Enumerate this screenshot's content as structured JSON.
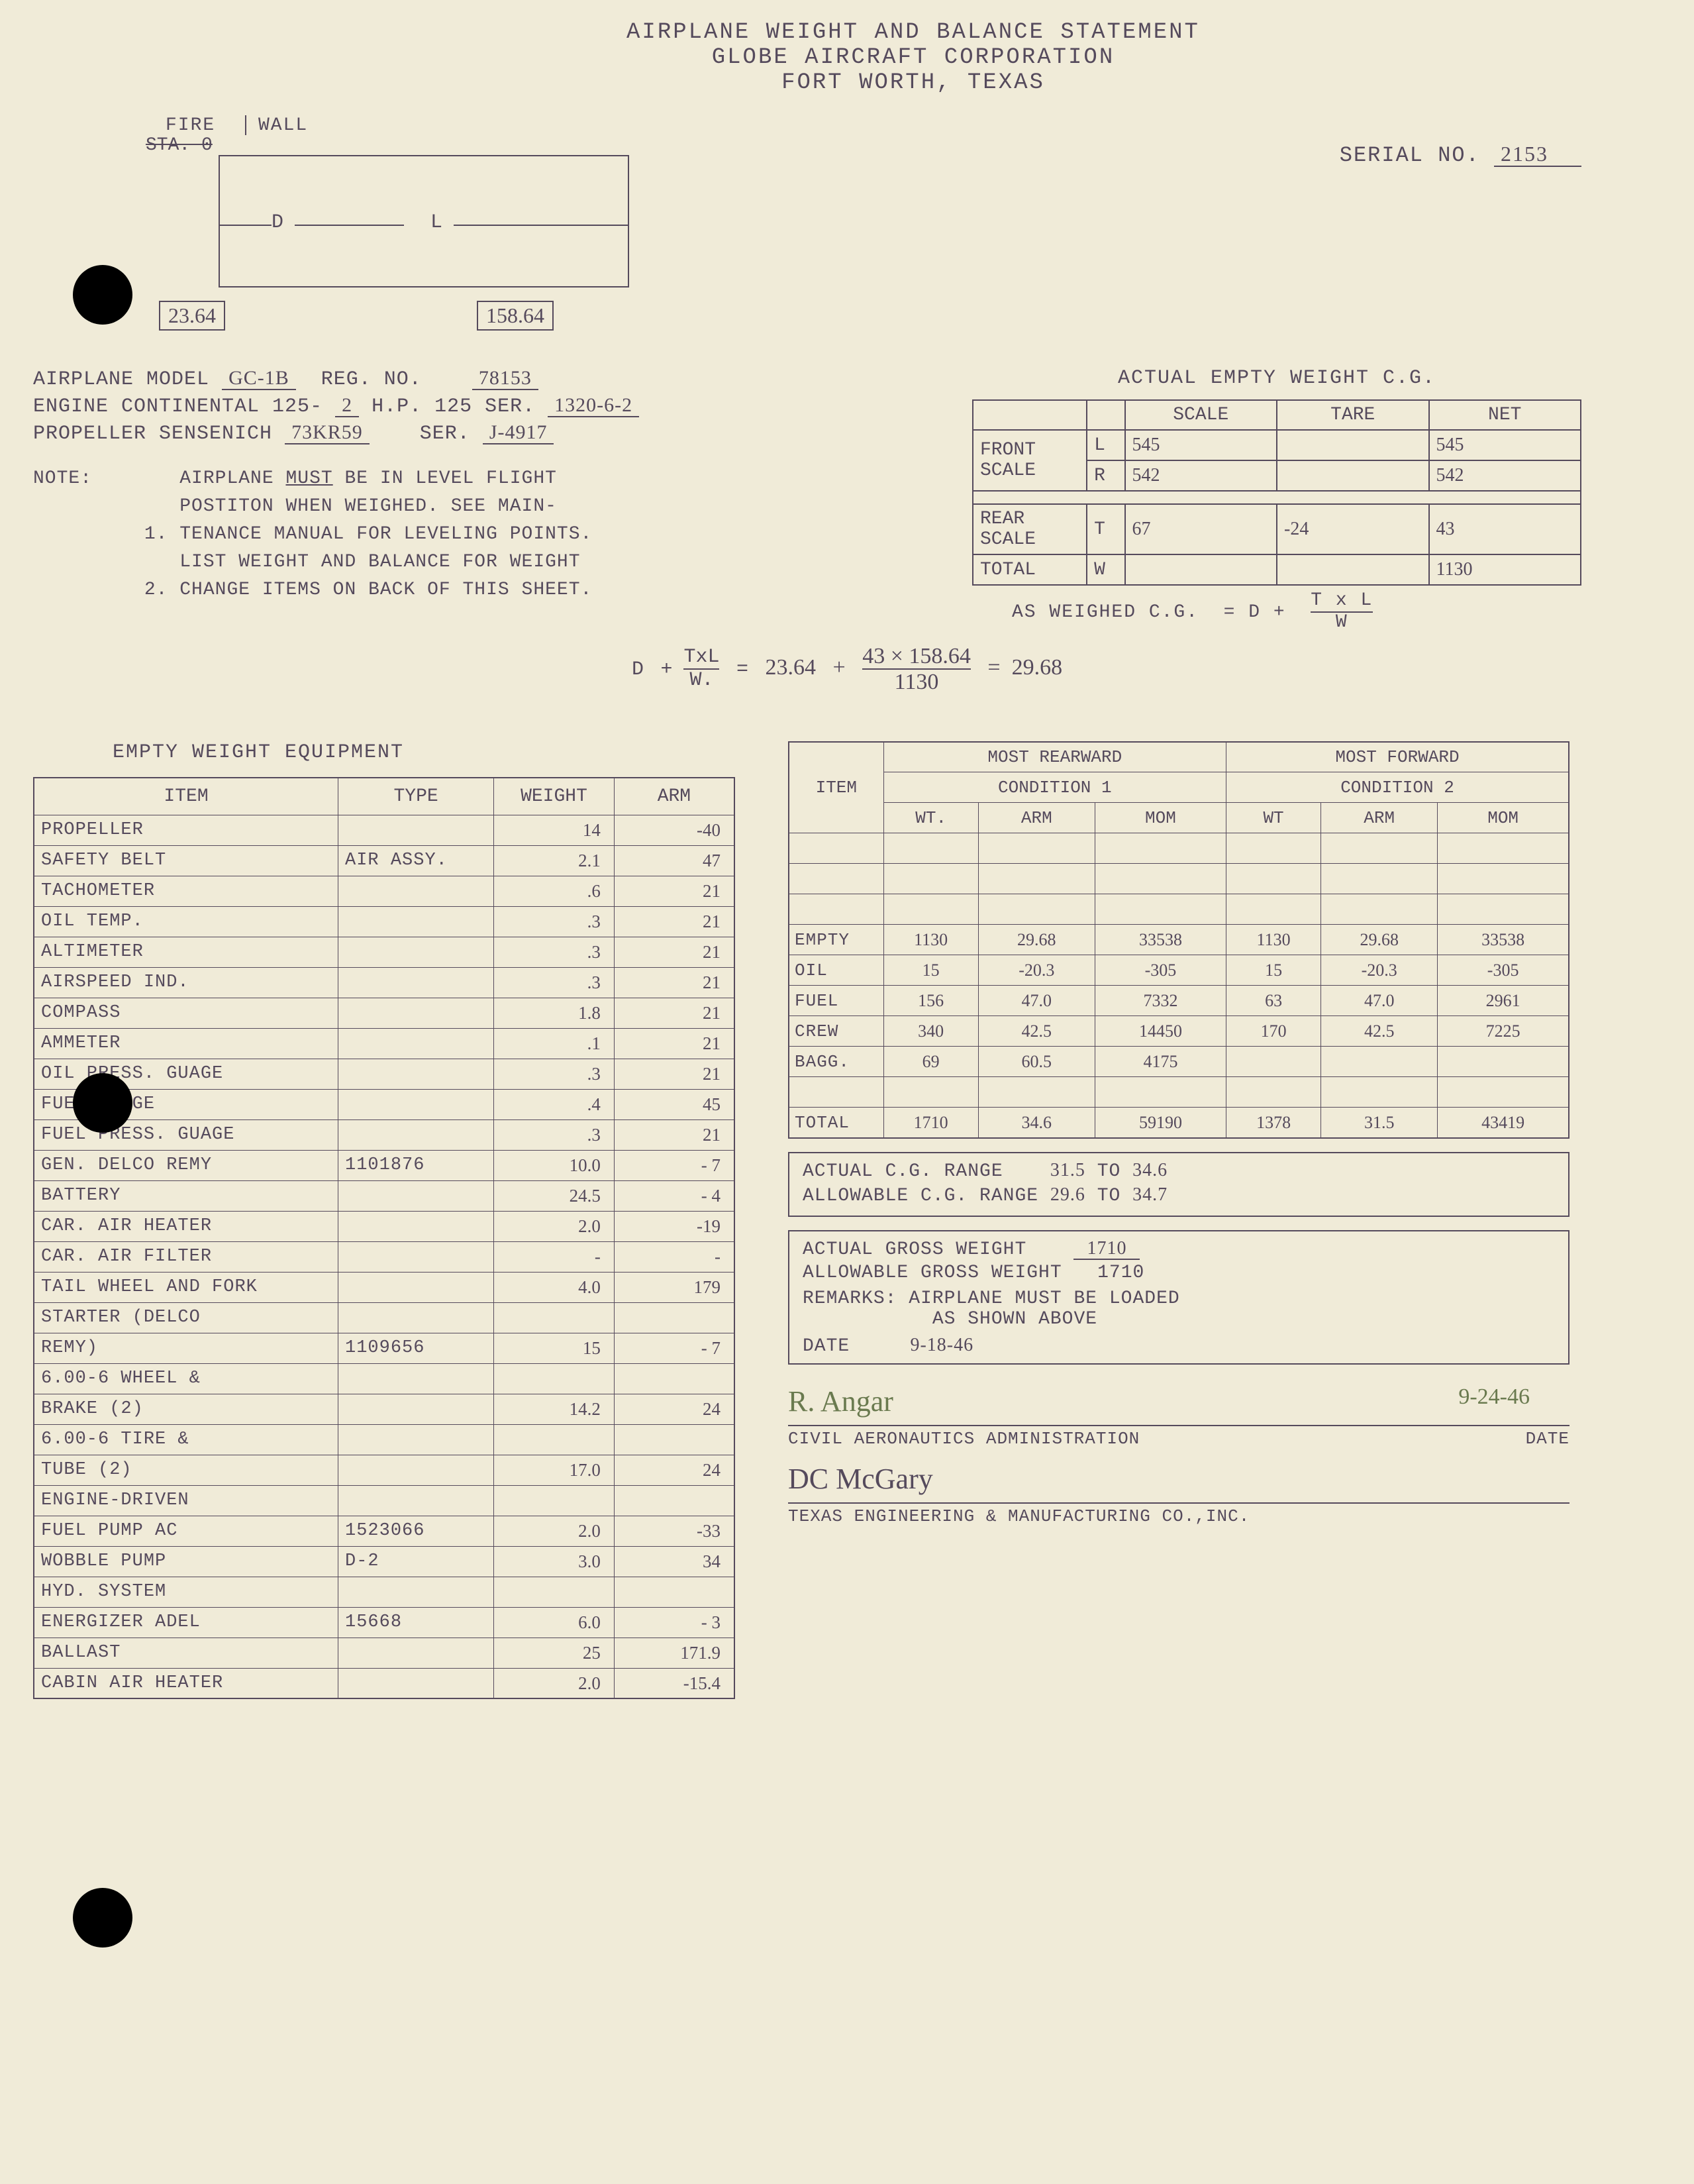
{
  "header": {
    "title1": "AIRPLANE WEIGHT AND BALANCE STATEMENT",
    "title2": "GLOBE AIRCRAFT CORPORATION",
    "title3": "FORT WORTH, TEXAS"
  },
  "serial": {
    "label": "SERIAL NO.",
    "value": "2153"
  },
  "diagram": {
    "fire": "FIRE",
    "wall": "WALL",
    "sta": "STA. 0",
    "d": "D",
    "l": "L",
    "dim1": "23.64",
    "dim2": "158.64"
  },
  "info": {
    "model_label": "AIRPLANE MODEL",
    "model": "GC-1B",
    "reg_label": "REG. NO.",
    "reg": "78153",
    "engine_label": "ENGINE CONTINENTAL 125-",
    "engine_num": "2",
    "hp_label": "H.P. 125 SER.",
    "engine_ser": "1320-6-2",
    "prop_label": "PROPELLER SENSENICH",
    "prop": "73KR59",
    "prop_ser_label": "SER.",
    "prop_ser": "J-4917"
  },
  "weight_table": {
    "title": "ACTUAL EMPTY WEIGHT C.G.",
    "headers": {
      "scale": "SCALE",
      "tare": "TARE",
      "net": "NET"
    },
    "rows": {
      "front_label": "FRONT SCALE",
      "front_L": {
        "code": "L",
        "scale": "545",
        "tare": "",
        "net": "545"
      },
      "front_R": {
        "code": "R",
        "scale": "542",
        "tare": "",
        "net": "542"
      },
      "rear_label": "REAR SCALE",
      "rear_T": {
        "code": "T",
        "scale": "67",
        "tare": "-24",
        "net": "43"
      },
      "total_label": "TOTAL",
      "total_code": "W",
      "total_net": "1130"
    },
    "formula": "AS WEIGHED C.G.  = D +  T x L / W"
  },
  "notes": {
    "label": "NOTE:",
    "n1_num": "1.",
    "n1_a": "AIRPLANE ",
    "n1_must": "MUST",
    "n1_b": " BE IN LEVEL FLIGHT",
    "n1_c": "POSTITON WHEN WEIGHED.  SEE MAIN-",
    "n1_d": "TENANCE MANUAL FOR LEVELING POINTS.",
    "n2_num": "2.",
    "n2_a": "LIST WEIGHT AND BALANCE FOR WEIGHT",
    "n2_b": "CHANGE ITEMS ON BACK OF THIS SHEET."
  },
  "calc": {
    "d": "D",
    "plus": "+",
    "txl": "TxL",
    "w": "W.",
    "eq": "=",
    "v1": "23.64",
    "num": "43 × 158.64",
    "den": "1130",
    "result": "29.68"
  },
  "equipment": {
    "title": "EMPTY WEIGHT EQUIPMENT",
    "headers": {
      "item": "ITEM",
      "type": "TYPE",
      "weight": "WEIGHT",
      "arm": "ARM"
    },
    "rows": [
      {
        "item": "PROPELLER",
        "type": "",
        "weight": "14",
        "arm": "-40"
      },
      {
        "item": "SAFETY BELT",
        "type": "AIR ASSY.",
        "weight": "2.1",
        "arm": "47"
      },
      {
        "item": "TACHOMETER",
        "type": "",
        "weight": ".6",
        "arm": "21"
      },
      {
        "item": "OIL TEMP.",
        "type": "",
        "weight": ".3",
        "arm": "21"
      },
      {
        "item": "ALTIMETER",
        "type": "",
        "weight": ".3",
        "arm": "21"
      },
      {
        "item": "AIRSPEED IND.",
        "type": "",
        "weight": ".3",
        "arm": "21"
      },
      {
        "item": "COMPASS",
        "type": "",
        "weight": "1.8",
        "arm": "21"
      },
      {
        "item": "AMMETER",
        "type": "",
        "weight": ".1",
        "arm": "21"
      },
      {
        "item": "OIL PRESS. GUAGE",
        "type": "",
        "weight": ".3",
        "arm": "21"
      },
      {
        "item": "FUEL GUAGE",
        "type": "",
        "weight": ".4",
        "arm": "45"
      },
      {
        "item": "FUEL PRESS. GUAGE",
        "type": "",
        "weight": ".3",
        "arm": "21"
      },
      {
        "item": "GEN. DELCO REMY",
        "type": "1101876",
        "weight": "10.0",
        "arm": "- 7"
      },
      {
        "item": "BATTERY",
        "type": "",
        "weight": "24.5",
        "arm": "- 4"
      },
      {
        "item": "CAR. AIR HEATER",
        "type": "",
        "weight": "2.0",
        "arm": "-19"
      },
      {
        "item": "CAR. AIR FILTER",
        "type": "",
        "weight": "-",
        "arm": "-"
      },
      {
        "item": "TAIL WHEEL AND FORK",
        "type": "",
        "weight": "4.0",
        "arm": "179"
      },
      {
        "item": "STARTER (DELCO",
        "type": "",
        "weight": "",
        "arm": ""
      },
      {
        "item": "REMY)",
        "type": "1109656",
        "weight": "15",
        "arm": "- 7"
      },
      {
        "item": "6.00-6 WHEEL &",
        "type": "",
        "weight": "",
        "arm": ""
      },
      {
        "item": "BRAKE (2)",
        "type": "",
        "weight": "14.2",
        "arm": "24"
      },
      {
        "item": "6.00-6 TIRE &",
        "type": "",
        "weight": "",
        "arm": ""
      },
      {
        "item": "TUBE (2)",
        "type": "",
        "weight": "17.0",
        "arm": "24"
      },
      {
        "item": "ENGINE-DRIVEN",
        "type": "",
        "weight": "",
        "arm": ""
      },
      {
        "item": "FUEL PUMP      AC",
        "type": "1523066",
        "weight": "2.0",
        "arm": "-33"
      },
      {
        "item": "WOBBLE PUMP",
        "type": "D-2",
        "weight": "3.0",
        "arm": "34"
      },
      {
        "item": "HYD. SYSTEM",
        "type": "",
        "weight": "",
        "arm": ""
      },
      {
        "item": "ENERGIZER ADEL",
        "type": "15668",
        "weight": "6.0",
        "arm": "- 3"
      },
      {
        "item": "BALLAST",
        "type": "",
        "weight": "25",
        "arm": "171.9"
      },
      {
        "item": "CABIN AIR HEATER",
        "type": "",
        "weight": "2.0",
        "arm": "-15.4"
      }
    ]
  },
  "conditions": {
    "rear_label": "MOST REARWARD",
    "fwd_label": "MOST FORWARD",
    "cond1": "CONDITION 1",
    "cond2": "CONDITION 2",
    "headers": {
      "item": "ITEM",
      "wt": "WT.",
      "arm": "ARM",
      "mom": "MOM",
      "wt2": "WT",
      "arm2": "ARM",
      "mom2": "MOM"
    },
    "rows": [
      {
        "item": "",
        "wt1": "",
        "arm1": "",
        "mom1": "",
        "wt2": "",
        "arm2": "",
        "mom2": ""
      },
      {
        "item": "",
        "wt1": "",
        "arm1": "",
        "mom1": "",
        "wt2": "",
        "arm2": "",
        "mom2": ""
      },
      {
        "item": "",
        "wt1": "",
        "arm1": "",
        "mom1": "",
        "wt2": "",
        "arm2": "",
        "mom2": ""
      },
      {
        "item": "EMPTY",
        "wt1": "1130",
        "arm1": "29.68",
        "mom1": "33538",
        "wt2": "1130",
        "arm2": "29.68",
        "mom2": "33538"
      },
      {
        "item": "OIL",
        "wt1": "15",
        "arm1": "-20.3",
        "mom1": "-305",
        "wt2": "15",
        "arm2": "-20.3",
        "mom2": "-305"
      },
      {
        "item": "FUEL",
        "wt1": "156",
        "arm1": "47.0",
        "mom1": "7332",
        "wt2": "63",
        "arm2": "47.0",
        "mom2": "2961"
      },
      {
        "item": "CREW",
        "wt1": "340",
        "arm1": "42.5",
        "mom1": "14450",
        "wt2": "170",
        "arm2": "42.5",
        "mom2": "7225"
      },
      {
        "item": "BAGG.",
        "wt1": "69",
        "arm1": "60.5",
        "mom1": "4175",
        "wt2": "",
        "arm2": "",
        "mom2": ""
      },
      {
        "item": "",
        "wt1": "",
        "arm1": "",
        "mom1": "",
        "wt2": "",
        "arm2": "",
        "mom2": ""
      },
      {
        "item": "TOTAL",
        "wt1": "1710",
        "arm1": "34.6",
        "mom1": "59190",
        "wt2": "1378",
        "arm2": "31.5",
        "mom2": "43419"
      }
    ]
  },
  "ranges": {
    "actual_cg_label": "ACTUAL C.G. RANGE",
    "actual_cg_lo": "31.5",
    "to": "TO",
    "actual_cg_hi": "34.6",
    "allow_cg_label": "ALLOWABLE C.G. RANGE",
    "allow_cg_lo": "29.6",
    "allow_cg_hi": "34.7"
  },
  "gross": {
    "actual_label": "ACTUAL GROSS WEIGHT",
    "actual": "1710",
    "allow_label": "ALLOWABLE GROSS WEIGHT",
    "allow": "1710",
    "remarks_label": "REMARKS:",
    "remarks1": "AIRPLANE MUST BE LOADED",
    "remarks2": "AS SHOWN ABOVE",
    "date_label": "DATE",
    "date": "9-18-46"
  },
  "signatures": {
    "sig1": "R. Angar",
    "sig1_date": "9-24-46",
    "sig1_under": "CIVIL AERONAUTICS ADMINISTRATION",
    "sig1_date_label": "DATE",
    "sig2": "DC McGary",
    "sig2_under": "TEXAS ENGINEERING & MANUFACTURING CO.,INC."
  }
}
